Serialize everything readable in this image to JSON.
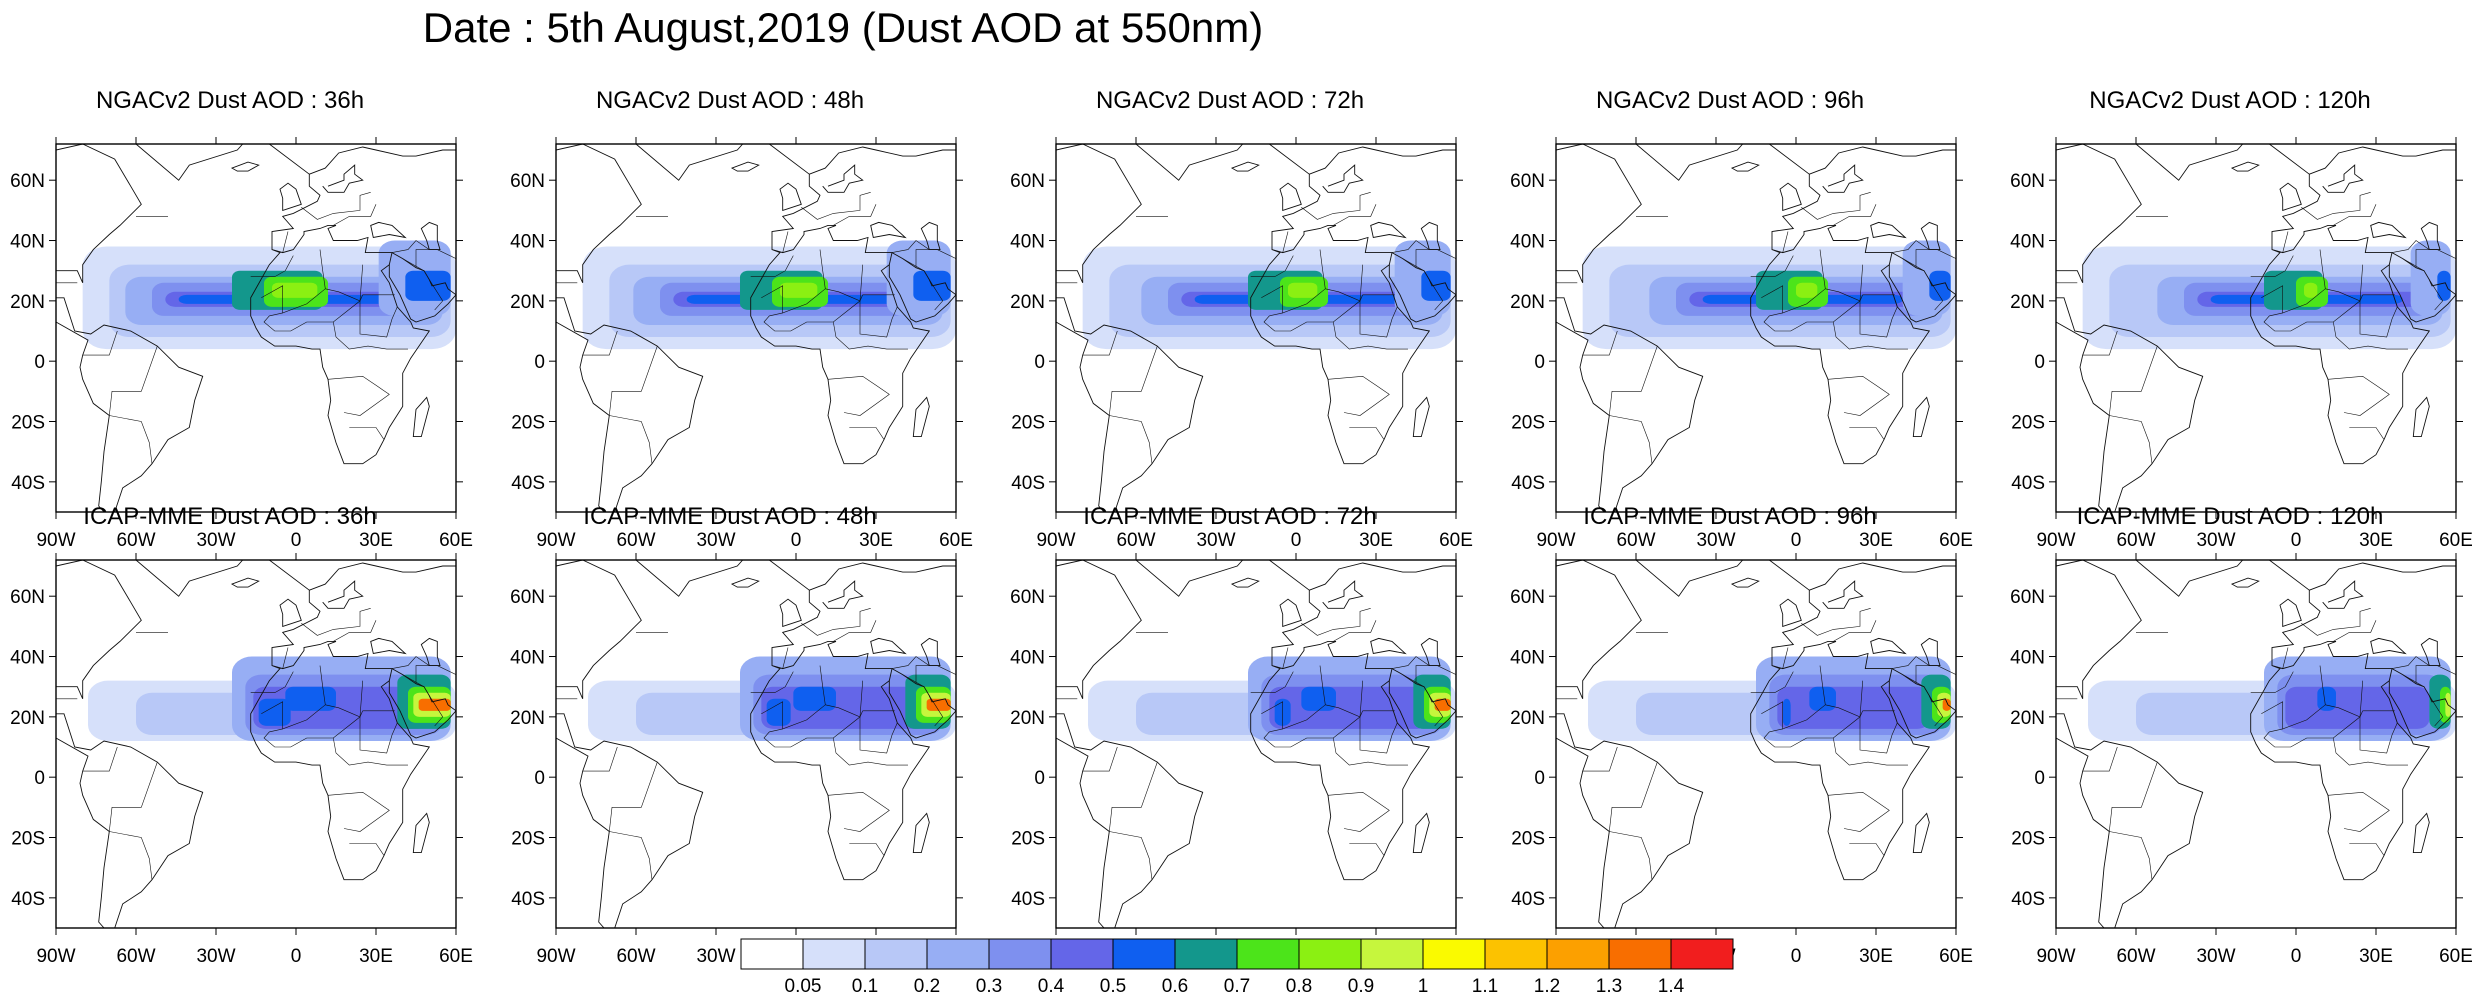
{
  "title": "Date : 5th August,2019 (Dust AOD at 550nm)",
  "axes": {
    "lat_ticks": [
      "60N",
      "40N",
      "20N",
      "0",
      "20S",
      "40S"
    ],
    "lon_ticks": [
      "90W",
      "60W",
      "30W",
      "0",
      "30E",
      "60E"
    ]
  },
  "panels": [
    {
      "title": "NGACv2 Dust AOD : 36h",
      "model": "NGACv2",
      "lead_hours": 36
    },
    {
      "title": "NGACv2 Dust AOD : 48h",
      "model": "NGACv2",
      "lead_hours": 48
    },
    {
      "title": "NGACv2 Dust AOD : 72h",
      "model": "NGACv2",
      "lead_hours": 72
    },
    {
      "title": "NGACv2 Dust AOD : 96h",
      "model": "NGACv2",
      "lead_hours": 96
    },
    {
      "title": "NGACv2 Dust AOD : 120h",
      "model": "NGACv2",
      "lead_hours": 120
    },
    {
      "title": "ICAP-MME Dust AOD : 36h",
      "model": "ICAP-MME",
      "lead_hours": 36
    },
    {
      "title": "ICAP-MME Dust AOD : 48h",
      "model": "ICAP-MME",
      "lead_hours": 48
    },
    {
      "title": "ICAP-MME Dust AOD : 72h",
      "model": "ICAP-MME",
      "lead_hours": 72
    },
    {
      "title": "ICAP-MME Dust AOD : 96h",
      "model": "ICAP-MME",
      "lead_hours": 96
    },
    {
      "title": "ICAP-MME Dust AOD : 120h",
      "model": "ICAP-MME",
      "lead_hours": 120
    }
  ],
  "colorbar": {
    "labels": [
      "0.05",
      "0.1",
      "0.2",
      "0.3",
      "0.4",
      "0.5",
      "0.6",
      "0.7",
      "0.8",
      "0.9",
      "1",
      "1.1",
      "1.2",
      "1.3",
      "1.4"
    ],
    "colors": [
      "#ffffff",
      "#d6e0fa",
      "#b8c8f7",
      "#97aef4",
      "#7e90ef",
      "#6466e8",
      "#0f5ff0",
      "#13978c",
      "#4ce41a",
      "#8bf012",
      "#c6f63d",
      "#fafa00",
      "#fcc200",
      "#fca000",
      "#f86e00",
      "#f11e1e"
    ]
  }
}
